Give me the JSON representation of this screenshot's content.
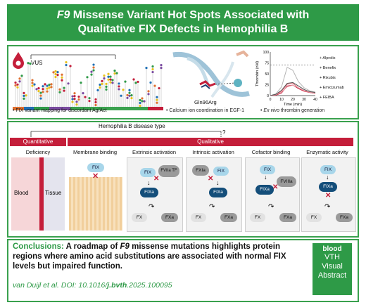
{
  "title": {
    "line1_gene": "F9",
    "line1_rest": " Missense Variant Hot Spots Associated with",
    "line2": "Qualitative FIX Defects in Hemophilia B"
  },
  "top_panel": {
    "vus_label": "VUS",
    "variant_caption": "FIX variant mapping for discordant Ag/Act",
    "structure_label": "Gln96Arg",
    "structure_caption": "Calcium ion coordination in EGF-1",
    "thrombin_caption_italic": "Ex vivo",
    "thrombin_caption_rest": " thrombin generation"
  },
  "chart_data": {
    "type": "line",
    "ylabel": "Thrombin (nM)",
    "xlabel": "Time (min)",
    "xlim": [
      0,
      40
    ],
    "ylim": [
      0,
      100
    ],
    "xticks": [
      "0",
      "10",
      "20",
      "30",
      "40"
    ],
    "yticks": [
      "0",
      "25",
      "50",
      "75",
      "100"
    ],
    "grid": false,
    "legend_placement": "right",
    "x": [
      0,
      5,
      10,
      15,
      20,
      25,
      30,
      35,
      40
    ],
    "reference_line_y": 70,
    "series": [
      {
        "name": "Alprolix",
        "color": "#c41e3a",
        "values": [
          0,
          1,
          6,
          22,
          24,
          16,
          10,
          7,
          5
        ]
      },
      {
        "name": "Benefix",
        "color": "#e06a7a",
        "values": [
          0,
          2,
          10,
          26,
          28,
          18,
          11,
          7,
          5
        ]
      },
      {
        "name": "Rixubis",
        "color": "#b5b5b5",
        "values": [
          0,
          4,
          20,
          65,
          58,
          32,
          18,
          11,
          8
        ]
      },
      {
        "name": "Emicizumab",
        "color": "#e8a0aa",
        "values": [
          0,
          2,
          8,
          20,
          24,
          18,
          12,
          8,
          6
        ]
      },
      {
        "name": "FEIBA",
        "color": "#555555",
        "values": [
          0,
          3,
          12,
          28,
          30,
          22,
          14,
          9,
          7
        ]
      }
    ]
  },
  "bottom_panel": {
    "disease_type": "Hemophilia B disease type",
    "question_mark": "?",
    "quantitative_tag": "Quantitative",
    "qualitative_tag": "Qualitative",
    "categories": [
      "Deficiency",
      "Membrane binding",
      "Extrinsic activation",
      "Intrinsic activation",
      "Cofactor binding",
      "Enzymatic activity"
    ],
    "blood_label": "Blood",
    "tissue_label": "Tissue",
    "fix": "FIX",
    "fixa": "FIXa",
    "fx": "FX",
    "fxa": "FXa",
    "fxia": "FXIa",
    "fviia_tf": "FVIIa TF",
    "fviiia": "FVIIIa"
  },
  "conclusion": {
    "label": "Conclusions:",
    "text_part1": " A roadmap of ",
    "gene": "F9",
    "text_part2": " missense mutations highlights protein regions where amino acid substitutions are associated with normal FIX levels but impaired function.",
    "citation_prefix": "van Duijl et al. DOI: 10.1016/",
    "citation_bold": "j.bvth",
    "citation_suffix": ".2025.100095"
  },
  "badge": {
    "brand": "blood",
    "line1": "VTH",
    "line2": "Visual",
    "line3": "Abstract"
  }
}
